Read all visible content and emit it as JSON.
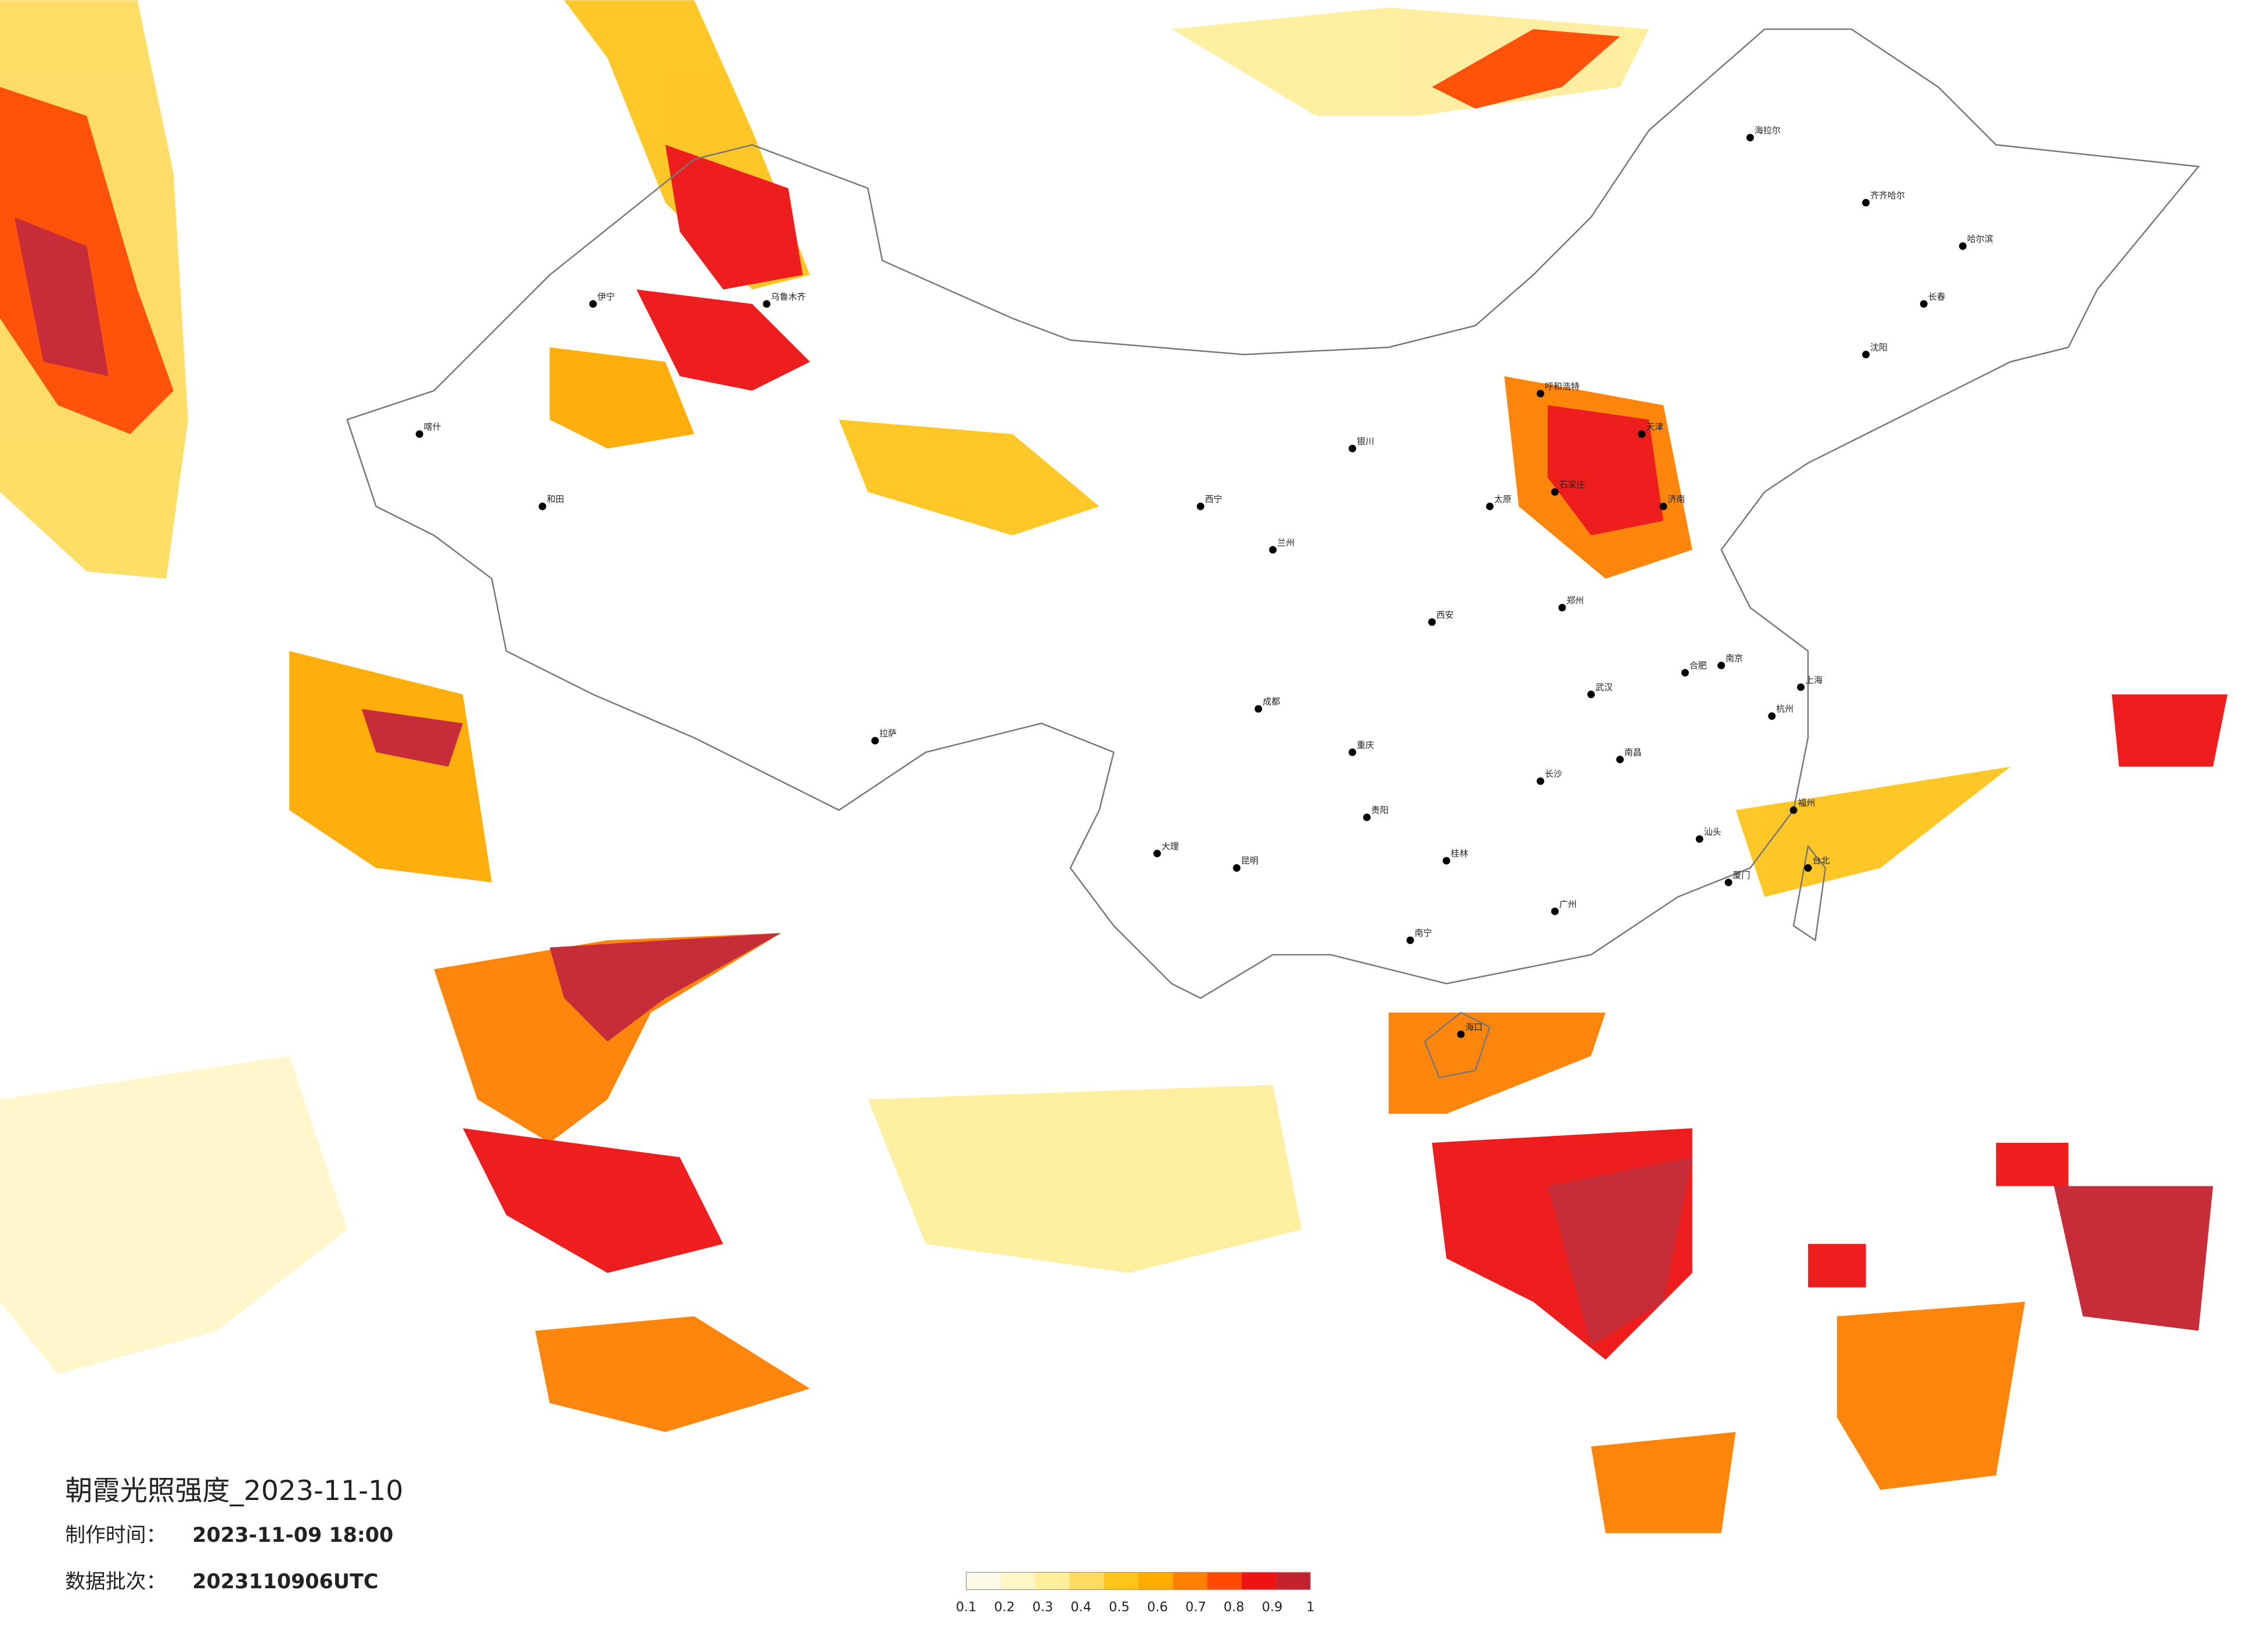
{
  "header": {
    "title": "朝霞光照强度_2023-11-10",
    "made_label": "制作时间：",
    "made_time": "2023-11-09 18:00",
    "batch_label": "数据批次：",
    "batch": "2023110906UTC"
  },
  "legend": {
    "ticks": [
      0.1,
      0.2,
      0.3,
      0.4,
      0.5,
      0.6,
      0.7,
      0.8,
      0.9,
      1
    ],
    "colors": [
      "#fffbe8",
      "#fff6c8",
      "#ffee9c",
      "#ffdc60",
      "#ffc41c",
      "#ffab00",
      "#ff8000",
      "#ff4a00",
      "#ee1212",
      "#c4222e"
    ]
  },
  "cities": [
    "哈尔滨",
    "长春",
    "沈阳",
    "呼和浩特",
    "乌鲁木齐",
    "拉萨",
    "西宁",
    "兰州",
    "银川",
    "西安",
    "成都",
    "重庆",
    "昆明",
    "贵阳",
    "南宁",
    "广州",
    "长沙",
    "武汉",
    "郑州",
    "济南",
    "南京",
    "上海",
    "杭州",
    "福州",
    "南昌",
    "合肥",
    "太原",
    "石家庄",
    "天津",
    "海口",
    "台北",
    "喀什",
    "和田",
    "伊宁",
    "齐齐哈尔",
    "海拉尔",
    "大理",
    "桂林",
    "汕头",
    "厦门"
  ]
}
